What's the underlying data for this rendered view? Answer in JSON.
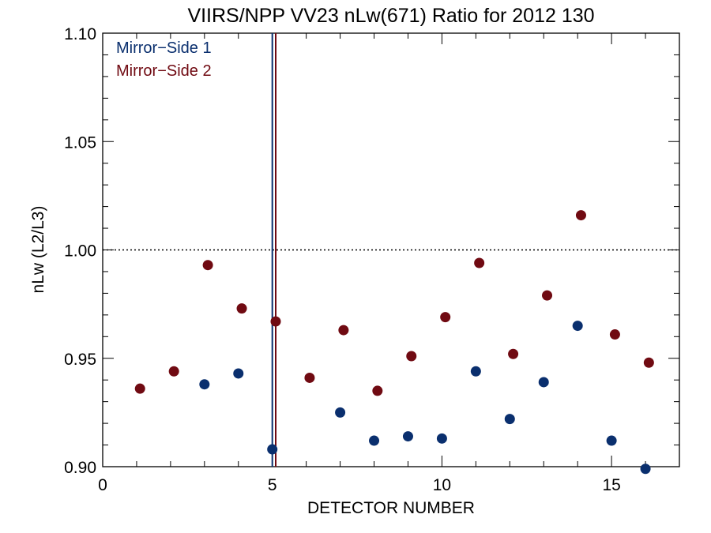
{
  "chart_data": {
    "type": "scatter",
    "title": "VIIRS/NPP VV23 nLw(671) Ratio for 2012 130",
    "xlabel": "DETECTOR NUMBER",
    "ylabel": "nLw (L2/L3)",
    "xlim": [
      0,
      17
    ],
    "ylim": [
      0.9,
      1.1
    ],
    "x_ticks": [
      0,
      5,
      10,
      15
    ],
    "x_tick_labels": [
      "0",
      "5",
      "10",
      "15"
    ],
    "y_ticks": [
      0.9,
      0.95,
      1.0,
      1.05,
      1.1
    ],
    "y_tick_labels": [
      "0.90",
      "0.95",
      "1.00",
      "1.05",
      "1.10"
    ],
    "x_minor_step": 1,
    "y_minor_step": 0.01,
    "reference_line": {
      "y": 1.0,
      "style": "dotted"
    },
    "vertical_lines": [
      {
        "x": 5.0,
        "series": "Mirror-Side 1"
      },
      {
        "x": 5.1,
        "series": "Mirror-Side 2"
      }
    ],
    "legend_position": "top-left",
    "series": [
      {
        "name": "Mirror−Side 1",
        "color": "#0a2f6e",
        "x": [
          3,
          4,
          5,
          7,
          8,
          9,
          10,
          11,
          12,
          13,
          14,
          15,
          16
        ],
        "y": [
          0.938,
          0.943,
          0.908,
          0.925,
          0.912,
          0.914,
          0.913,
          0.944,
          0.922,
          0.939,
          0.965,
          0.912,
          0.899
        ]
      },
      {
        "name": "Mirror−Side 2",
        "color": "#700a12",
        "x": [
          1.1,
          2.1,
          3.1,
          4.1,
          5.1,
          6.1,
          7.1,
          8.1,
          9.1,
          10.1,
          11.1,
          12.1,
          13.1,
          14.1,
          15.1,
          16.1
        ],
        "y": [
          0.936,
          0.944,
          0.993,
          0.973,
          0.967,
          0.941,
          0.963,
          0.935,
          0.951,
          0.969,
          0.994,
          0.952,
          0.979,
          1.016,
          0.961,
          0.948
        ]
      }
    ]
  }
}
